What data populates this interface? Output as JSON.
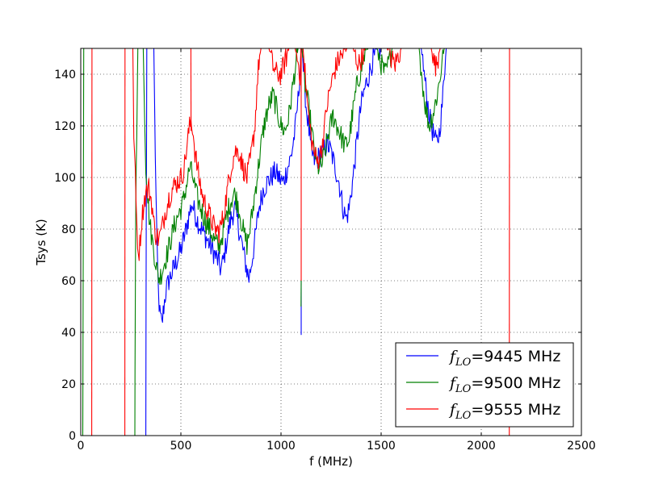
{
  "chart_data": {
    "type": "line",
    "title": "",
    "xlabel": "f (MHz)",
    "ylabel": "Tsys (K)",
    "xlim": [
      0,
      2500
    ],
    "ylim": [
      0,
      150
    ],
    "xticks": [
      0,
      500,
      1000,
      1500,
      2000,
      2500
    ],
    "yticks": [
      0,
      20,
      40,
      60,
      80,
      100,
      120,
      140
    ],
    "xtick_labels": [
      "0",
      "500",
      "1000",
      "1500",
      "2000",
      "2500"
    ],
    "ytick_labels": [
      "0",
      "20",
      "40",
      "60",
      "80",
      "100",
      "120",
      "140"
    ],
    "grid": true,
    "legend_position": "lower-right",
    "series": [
      {
        "name": "f_LO=9445 MHz",
        "legend": {
          "symbol": "f",
          "subscript": "LO",
          "text": "=9445 MHz"
        },
        "color": "#0000ff",
        "segments": [
          [
            [
              325,
              0
            ],
            [
              327,
              80
            ],
            [
              330,
              150
            ]
          ],
          [
            [
              365,
              150
            ],
            [
              372,
              110
            ],
            [
              380,
              75
            ],
            [
              388,
              55
            ],
            [
              395,
              47
            ],
            [
              405,
              43
            ],
            [
              415,
              50
            ],
            [
              425,
              56
            ],
            [
              440,
              60
            ],
            [
              460,
              64
            ],
            [
              480,
              68
            ],
            [
              500,
              72
            ],
            [
              520,
              78
            ],
            [
              540,
              85
            ],
            [
              555,
              90
            ],
            [
              570,
              86
            ],
            [
              590,
              82
            ],
            [
              610,
              79
            ],
            [
              630,
              76
            ],
            [
              650,
              73
            ],
            [
              670,
              70
            ],
            [
              690,
              67
            ],
            [
              700,
              64
            ],
            [
              715,
              69
            ],
            [
              730,
              76
            ],
            [
              750,
              84
            ],
            [
              770,
              88
            ],
            [
              790,
              80
            ],
            [
              810,
              72
            ],
            [
              830,
              64
            ],
            [
              840,
              61
            ],
            [
              855,
              68
            ],
            [
              870,
              76
            ],
            [
              890,
              88
            ],
            [
              910,
              95
            ],
            [
              930,
              98
            ],
            [
              950,
              100
            ],
            [
              970,
              102
            ],
            [
              990,
              100
            ],
            [
              1010,
              98
            ],
            [
              1030,
              103
            ],
            [
              1050,
              108
            ],
            [
              1070,
              118
            ],
            [
              1085,
              130
            ],
            [
              1095,
              141
            ],
            [
              1100,
              150
            ]
          ],
          [
            [
              1101,
              39
            ],
            [
              1101,
              60
            ]
          ],
          [
            [
              1105,
              150
            ],
            [
              1115,
              138
            ],
            [
              1125,
              128
            ],
            [
              1140,
              118
            ],
            [
              1150,
              110
            ],
            [
              1170,
              106
            ],
            [
              1190,
              108
            ],
            [
              1210,
              110
            ],
            [
              1230,
              113
            ],
            [
              1250,
              110
            ],
            [
              1270,
              104
            ],
            [
              1290,
              98
            ],
            [
              1310,
              88
            ],
            [
              1325,
              84
            ],
            [
              1340,
              88
            ],
            [
              1360,
              100
            ],
            [
              1380,
              115
            ],
            [
              1400,
              128
            ],
            [
              1420,
              135
            ],
            [
              1440,
              140
            ],
            [
              1460,
              146
            ],
            [
              1480,
              148
            ],
            [
              1500,
              150
            ]
          ],
          [
            [
              1700,
              150
            ],
            [
              1715,
              140
            ],
            [
              1730,
              130
            ],
            [
              1745,
              122
            ],
            [
              1760,
              117
            ],
            [
              1775,
              113
            ],
            [
              1790,
              117
            ],
            [
              1805,
              128
            ],
            [
              1815,
              140
            ],
            [
              1825,
              150
            ]
          ]
        ]
      },
      {
        "name": "f_LO=9500 MHz",
        "legend": {
          "symbol": "f",
          "subscript": "LO",
          "text": "=9500 MHz"
        },
        "color": "#008000",
        "segments": [
          [
            [
              10,
              0
            ],
            [
              15,
              150
            ]
          ],
          [
            [
              270,
              0
            ],
            [
              272,
              50
            ],
            [
              275,
              90
            ],
            [
              280,
              120
            ],
            [
              285,
              150
            ]
          ],
          [
            [
              312,
              150
            ],
            [
              318,
              128
            ],
            [
              325,
              105
            ],
            [
              335,
              92
            ],
            [
              345,
              82
            ],
            [
              360,
              74
            ],
            [
              375,
              67
            ],
            [
              385,
              62
            ],
            [
              395,
              61
            ],
            [
              410,
              65
            ],
            [
              430,
              70
            ],
            [
              450,
              76
            ],
            [
              470,
              82
            ],
            [
              490,
              86
            ],
            [
              510,
              90
            ],
            [
              530,
              98
            ],
            [
              545,
              104
            ],
            [
              560,
              100
            ],
            [
              575,
              94
            ],
            [
              590,
              90
            ],
            [
              610,
              86
            ],
            [
              630,
              82
            ],
            [
              650,
              79
            ],
            [
              670,
              75
            ],
            [
              690,
              73
            ],
            [
              705,
              77
            ],
            [
              725,
              84
            ],
            [
              745,
              90
            ],
            [
              765,
              94
            ],
            [
              785,
              90
            ],
            [
              800,
              84
            ],
            [
              815,
              78
            ],
            [
              830,
              74
            ],
            [
              845,
              80
            ],
            [
              860,
              88
            ],
            [
              880,
              100
            ],
            [
              900,
              112
            ],
            [
              920,
              122
            ],
            [
              940,
              128
            ],
            [
              960,
              132
            ],
            [
              980,
              126
            ],
            [
              1000,
              120
            ],
            [
              1020,
              118
            ],
            [
              1040,
              124
            ],
            [
              1060,
              136
            ],
            [
              1075,
              145
            ],
            [
              1085,
              150
            ]
          ],
          [
            [
              1100,
              50
            ],
            [
              1101,
              60
            ]
          ],
          [
            [
              1105,
              150
            ],
            [
              1120,
              136
            ],
            [
              1140,
              126
            ],
            [
              1160,
              114
            ],
            [
              1180,
              104
            ],
            [
              1200,
              104
            ],
            [
              1220,
              110
            ],
            [
              1240,
              118
            ],
            [
              1260,
              124
            ],
            [
              1280,
              120
            ],
            [
              1300,
              116
            ],
            [
              1320,
              112
            ],
            [
              1340,
              115
            ],
            [
              1360,
              126
            ],
            [
              1380,
              136
            ],
            [
              1400,
              142
            ],
            [
              1420,
              148
            ],
            [
              1435,
              150
            ]
          ],
          [
            [
              1480,
              150
            ],
            [
              1500,
              144
            ],
            [
              1520,
              140
            ],
            [
              1540,
              145
            ],
            [
              1555,
              150
            ]
          ],
          [
            [
              1690,
              150
            ],
            [
              1705,
              138
            ],
            [
              1720,
              128
            ],
            [
              1740,
              120
            ],
            [
              1760,
              125
            ],
            [
              1780,
              132
            ],
            [
              1800,
              142
            ],
            [
              1815,
              150
            ]
          ]
        ]
      },
      {
        "name": "f_LO=9555 MHz",
        "legend": {
          "symbol": "f",
          "subscript": "LO",
          "text": "=9555 MHz"
        },
        "color": "#ff0000",
        "segments": [
          [
            [
              55,
              0
            ],
            [
              56,
              150
            ]
          ],
          [
            [
              220,
              0
            ],
            [
              221,
              150
            ]
          ],
          [
            [
              260,
              150
            ],
            [
              265,
              118
            ],
            [
              272,
              100
            ],
            [
              280,
              82
            ],
            [
              288,
              70
            ],
            [
              295,
              74
            ],
            [
              305,
              84
            ],
            [
              315,
              90
            ],
            [
              325,
              94
            ],
            [
              340,
              96
            ],
            [
              355,
              90
            ],
            [
              365,
              82
            ],
            [
              375,
              78
            ],
            [
              390,
              76
            ],
            [
              405,
              80
            ],
            [
              420,
              86
            ],
            [
              440,
              92
            ],
            [
              460,
              96
            ],
            [
              480,
              98
            ],
            [
              500,
              100
            ],
            [
              515,
              103
            ],
            [
              530,
              112
            ],
            [
              540,
              118
            ],
            [
              550,
              122
            ],
            [
              558,
              120
            ],
            [
              570,
              110
            ],
            [
              590,
              100
            ],
            [
              610,
              92
            ],
            [
              630,
              88
            ],
            [
              650,
              84
            ],
            [
              670,
              80
            ],
            [
              690,
              79
            ],
            [
              710,
              84
            ],
            [
              730,
              94
            ],
            [
              750,
              104
            ],
            [
              770,
              110
            ],
            [
              790,
              110
            ],
            [
              810,
              104
            ],
            [
              830,
              100
            ],
            [
              850,
              108
            ],
            [
              870,
              120
            ],
            [
              880,
              135
            ],
            [
              890,
              145
            ],
            [
              900,
              150
            ]
          ],
          [
            [
              550,
              150
            ],
            [
              551,
              118
            ]
          ],
          [
            [
              940,
              150
            ],
            [
              960,
              143
            ],
            [
              980,
              140
            ],
            [
              1000,
              140
            ],
            [
              1020,
              145
            ],
            [
              1040,
              150
            ]
          ],
          [
            [
              1070,
              150
            ],
            [
              1085,
              145
            ],
            [
              1095,
              140
            ],
            [
              1100,
              150
            ]
          ],
          [
            [
              1101,
              60
            ],
            [
              1101,
              150
            ]
          ],
          [
            [
              1110,
              150
            ],
            [
              1120,
              140
            ],
            [
              1135,
              126
            ],
            [
              1150,
              116
            ],
            [
              1165,
              110
            ],
            [
              1180,
              106
            ],
            [
              1200,
              110
            ],
            [
              1215,
              118
            ],
            [
              1230,
              128
            ],
            [
              1250,
              136
            ],
            [
              1270,
              142
            ],
            [
              1290,
              146
            ],
            [
              1310,
              148
            ],
            [
              1330,
              150
            ]
          ],
          [
            [
              1360,
              150
            ],
            [
              1375,
              146
            ],
            [
              1390,
              144
            ],
            [
              1410,
              148
            ],
            [
              1420,
              150
            ]
          ],
          [
            [
              1530,
              150
            ],
            [
              1550,
              146
            ],
            [
              1570,
              144
            ],
            [
              1590,
              148
            ],
            [
              1600,
              150
            ]
          ],
          [
            [
              1750,
              150
            ],
            [
              1762,
              145
            ],
            [
              1775,
              143
            ],
            [
              1788,
              148
            ],
            [
              1795,
              150
            ]
          ],
          [
            [
              2140,
              0
            ],
            [
              2141,
              150
            ]
          ]
        ]
      }
    ]
  }
}
